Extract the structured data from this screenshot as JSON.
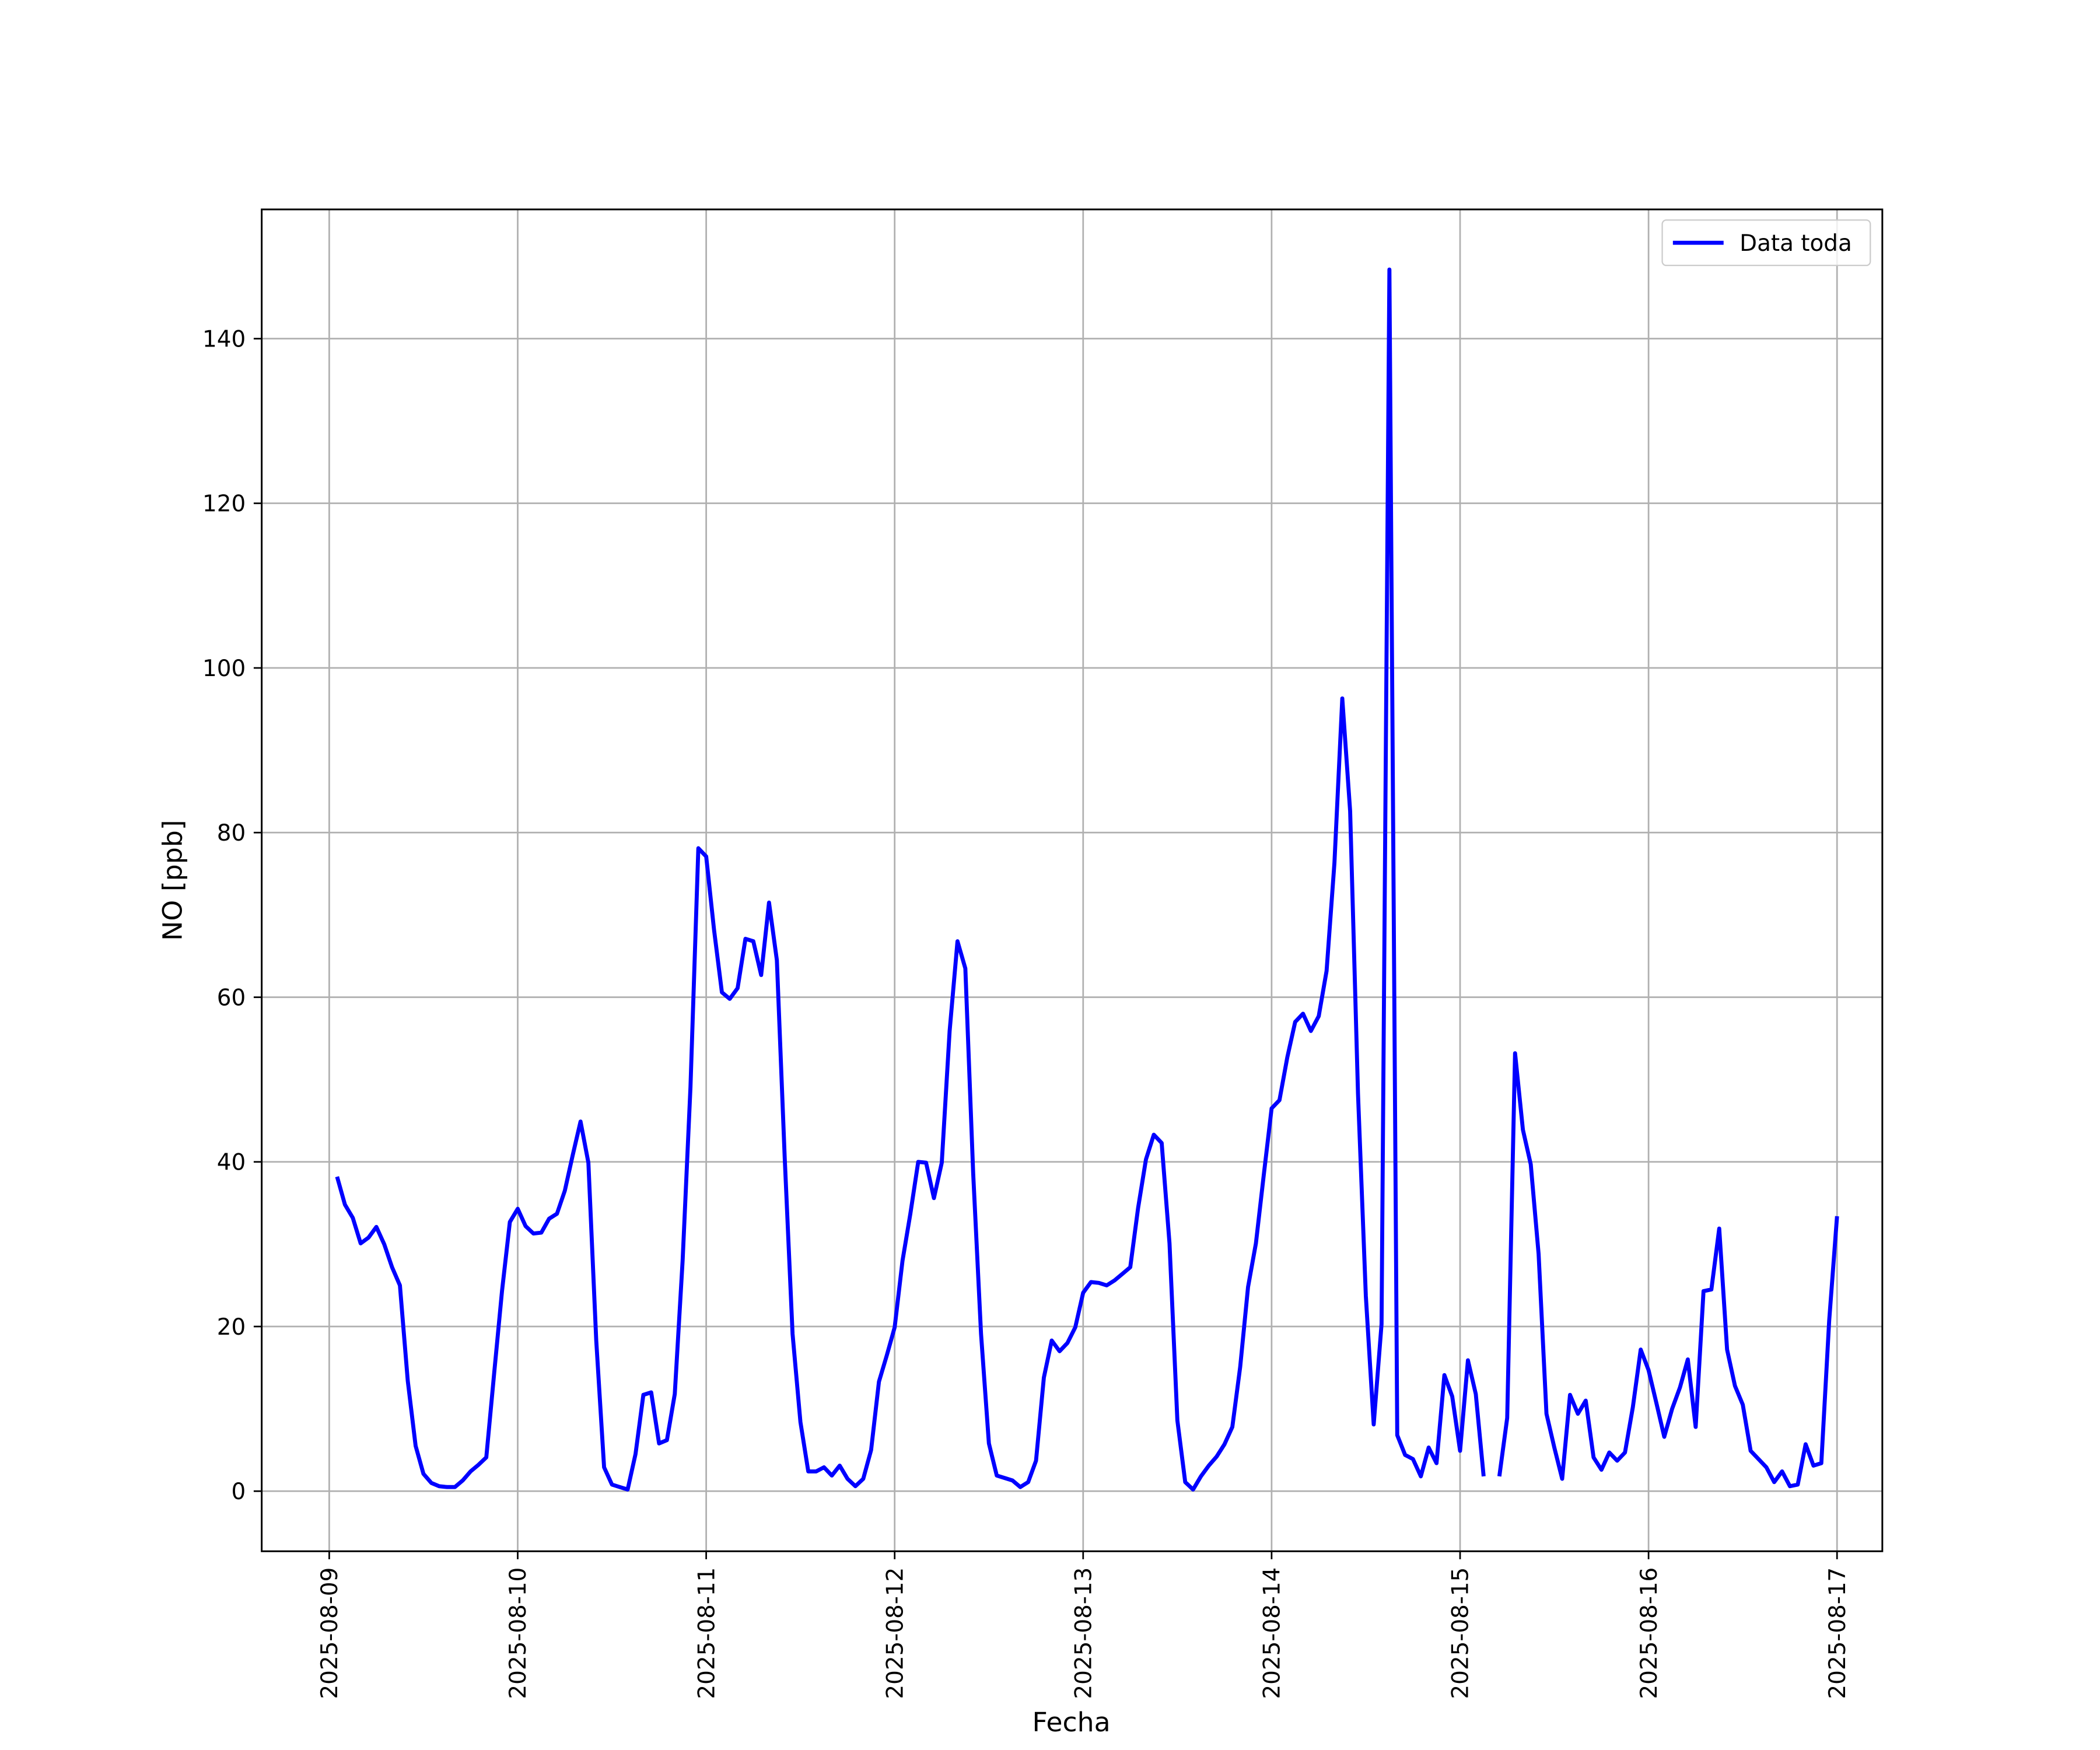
{
  "chart_data": {
    "type": "line",
    "x_label": "Fecha",
    "y_label": "NO [ppb]",
    "x": [
      "2025-08-09T01:00",
      "2025-08-09T02:00",
      "2025-08-09T03:00",
      "2025-08-09T04:00",
      "2025-08-09T05:00",
      "2025-08-09T06:00",
      "2025-08-09T07:00",
      "2025-08-09T08:00",
      "2025-08-09T09:00",
      "2025-08-09T10:00",
      "2025-08-09T11:00",
      "2025-08-09T12:00",
      "2025-08-09T13:00",
      "2025-08-09T14:00",
      "2025-08-09T15:00",
      "2025-08-09T16:00",
      "2025-08-09T17:00",
      "2025-08-09T18:00",
      "2025-08-09T19:00",
      "2025-08-09T20:00",
      "2025-08-09T21:00",
      "2025-08-09T22:00",
      "2025-08-09T23:00",
      "2025-08-10T00:00",
      "2025-08-10T01:00",
      "2025-08-10T02:00",
      "2025-08-10T03:00",
      "2025-08-10T04:00",
      "2025-08-10T05:00",
      "2025-08-10T06:00",
      "2025-08-10T07:00",
      "2025-08-10T08:00",
      "2025-08-10T09:00",
      "2025-08-10T10:00",
      "2025-08-10T11:00",
      "2025-08-10T12:00",
      "2025-08-10T13:00",
      "2025-08-10T14:00",
      "2025-08-10T15:00",
      "2025-08-10T16:00",
      "2025-08-10T17:00",
      "2025-08-10T18:00",
      "2025-08-10T19:00",
      "2025-08-10T20:00",
      "2025-08-10T21:00",
      "2025-08-10T22:00",
      "2025-08-10T23:00",
      "2025-08-11T00:00",
      "2025-08-11T01:00",
      "2025-08-11T02:00",
      "2025-08-11T03:00",
      "2025-08-11T04:00",
      "2025-08-11T05:00",
      "2025-08-11T06:00",
      "2025-08-11T07:00",
      "2025-08-11T08:00",
      "2025-08-11T09:00",
      "2025-08-11T10:00",
      "2025-08-11T11:00",
      "2025-08-11T12:00",
      "2025-08-11T13:00",
      "2025-08-11T14:00",
      "2025-08-11T15:00",
      "2025-08-11T16:00",
      "2025-08-11T17:00",
      "2025-08-11T18:00",
      "2025-08-11T19:00",
      "2025-08-11T20:00",
      "2025-08-11T21:00",
      "2025-08-11T22:00",
      "2025-08-11T23:00",
      "2025-08-12T00:00",
      "2025-08-12T01:00",
      "2025-08-12T02:00",
      "2025-08-12T03:00",
      "2025-08-12T04:00",
      "2025-08-12T05:00",
      "2025-08-12T06:00",
      "2025-08-12T07:00",
      "2025-08-12T08:00",
      "2025-08-12T09:00",
      "2025-08-12T10:00",
      "2025-08-12T11:00",
      "2025-08-12T12:00",
      "2025-08-12T13:00",
      "2025-08-12T14:00",
      "2025-08-12T15:00",
      "2025-08-12T16:00",
      "2025-08-12T17:00",
      "2025-08-12T18:00",
      "2025-08-12T19:00",
      "2025-08-12T20:00",
      "2025-08-12T21:00",
      "2025-08-12T22:00",
      "2025-08-12T23:00",
      "2025-08-13T00:00",
      "2025-08-13T01:00",
      "2025-08-13T02:00",
      "2025-08-13T03:00",
      "2025-08-13T04:00",
      "2025-08-13T05:00",
      "2025-08-13T06:00",
      "2025-08-13T07:00",
      "2025-08-13T08:00",
      "2025-08-13T09:00",
      "2025-08-13T10:00",
      "2025-08-13T11:00",
      "2025-08-13T12:00",
      "2025-08-13T13:00",
      "2025-08-13T14:00",
      "2025-08-13T15:00",
      "2025-08-13T16:00",
      "2025-08-13T17:00",
      "2025-08-13T18:00",
      "2025-08-13T19:00",
      "2025-08-13T20:00",
      "2025-08-13T21:00",
      "2025-08-13T22:00",
      "2025-08-13T23:00",
      "2025-08-14T00:00",
      "2025-08-14T01:00",
      "2025-08-14T02:00",
      "2025-08-14T03:00",
      "2025-08-14T04:00",
      "2025-08-14T05:00",
      "2025-08-14T06:00",
      "2025-08-14T07:00",
      "2025-08-14T08:00",
      "2025-08-14T09:00",
      "2025-08-14T10:00",
      "2025-08-14T11:00",
      "2025-08-14T12:00",
      "2025-08-14T13:00",
      "2025-08-14T14:00",
      "2025-08-14T15:00",
      "2025-08-14T16:00",
      "2025-08-14T17:00",
      "2025-08-14T18:00",
      "2025-08-14T19:00",
      "2025-08-14T20:00",
      "2025-08-14T21:00",
      "2025-08-14T22:00",
      "2025-08-14T23:00",
      "2025-08-15T00:00",
      "2025-08-15T01:00",
      "2025-08-15T02:00",
      "2025-08-15T03:00",
      "2025-08-15T04:00",
      "2025-08-15T05:00",
      "2025-08-15T06:00",
      "2025-08-15T07:00",
      "2025-08-15T08:00",
      "2025-08-15T09:00",
      "2025-08-15T10:00",
      "2025-08-15T11:00",
      "2025-08-15T12:00",
      "2025-08-15T13:00",
      "2025-08-15T14:00",
      "2025-08-15T15:00",
      "2025-08-15T16:00",
      "2025-08-15T17:00",
      "2025-08-15T18:00",
      "2025-08-15T19:00",
      "2025-08-15T20:00",
      "2025-08-15T21:00",
      "2025-08-15T22:00",
      "2025-08-15T23:00",
      "2025-08-16T00:00",
      "2025-08-16T01:00",
      "2025-08-16T02:00",
      "2025-08-16T03:00",
      "2025-08-16T04:00",
      "2025-08-16T05:00",
      "2025-08-16T06:00",
      "2025-08-16T07:00",
      "2025-08-16T08:00",
      "2025-08-16T09:00",
      "2025-08-16T10:00",
      "2025-08-16T11:00",
      "2025-08-16T12:00",
      "2025-08-16T13:00",
      "2025-08-16T14:00",
      "2025-08-16T15:00",
      "2025-08-16T16:00",
      "2025-08-16T17:00",
      "2025-08-16T18:00",
      "2025-08-16T19:00",
      "2025-08-16T20:00",
      "2025-08-16T21:00",
      "2025-08-16T22:00",
      "2025-08-16T23:00",
      "2025-08-17T00:00"
    ],
    "series": [
      {
        "name": "Data toda",
        "color": "#0000ff",
        "values": [
          38.2,
          34.8,
          33.2,
          30.1,
          30.8,
          32.1,
          30.0,
          27.2,
          25.0,
          13.4,
          5.5,
          2.1,
          1.0,
          0.6,
          0.5,
          0.5,
          1.3,
          2.4,
          3.2,
          4.1,
          14.3,
          24.3,
          32.7,
          34.3,
          32.2,
          31.3,
          31.4,
          33.1,
          33.7,
          36.5,
          40.8,
          44.9,
          39.9,
          18.3,
          2.9,
          0.8,
          0.5,
          0.2,
          4.5,
          11.7,
          12.0,
          5.8,
          6.2,
          11.8,
          28.0,
          49.1,
          78.1,
          77.1,
          68.2,
          60.6,
          59.8,
          61.1,
          67.1,
          66.8,
          62.7,
          71.5,
          64.5,
          40.5,
          19.1,
          8.4,
          2.4,
          2.4,
          2.9,
          1.9,
          3.1,
          1.5,
          0.6,
          1.5,
          5.0,
          13.3,
          16.5,
          19.9,
          28.0,
          33.7,
          40.0,
          39.9,
          35.6,
          39.9,
          55.9,
          66.8,
          63.5,
          38.6,
          19.1,
          5.8,
          1.9,
          1.6,
          1.3,
          0.5,
          1.1,
          3.7,
          13.8,
          18.3,
          17.0,
          18.0,
          19.9,
          24.1,
          25.4,
          25.3,
          25.0,
          25.6,
          26.4,
          27.2,
          34.4,
          40.3,
          43.3,
          42.3,
          30.1,
          8.6,
          1.1,
          0.2,
          1.8,
          3.1,
          4.2,
          5.7,
          7.8,
          15.1,
          24.8,
          30.1,
          38.4,
          46.5,
          47.5,
          52.7,
          57.0,
          58.0,
          55.9,
          57.7,
          63.2,
          76.3,
          96.3,
          82.6,
          48.3,
          23.7,
          8.1,
          20.3,
          148.4,
          6.8,
          4.4,
          3.9,
          1.8,
          5.3,
          3.4,
          14.1,
          11.5,
          4.9,
          15.9,
          11.8,
          1.8,
          null,
          1.8,
          8.9,
          53.2,
          43.9,
          39.7,
          28.8,
          9.4,
          5.3,
          1.5,
          11.7,
          9.4,
          11.0,
          4.1,
          2.6,
          4.7,
          3.7,
          4.7,
          10.2,
          17.2,
          14.7,
          10.7,
          6.6,
          10.0,
          12.6,
          16.0,
          7.8,
          24.3,
          24.5,
          31.9,
          17.2,
          12.8,
          10.5,
          4.9,
          3.9,
          2.9,
          1.1,
          2.4,
          0.6,
          0.8,
          5.7,
          3.1,
          3.4,
          20.7,
          33.4
        ]
      }
    ],
    "xlim": [
      "2025-08-08T15:24",
      "2025-08-17T05:46"
    ],
    "xticks": [
      "2025-08-09",
      "2025-08-10",
      "2025-08-11",
      "2025-08-12",
      "2025-08-13",
      "2025-08-14",
      "2025-08-15",
      "2025-08-16",
      "2025-08-17"
    ],
    "ylim": [
      -7.3,
      155.7
    ],
    "yticks": [
      0,
      20,
      40,
      60,
      80,
      100,
      120,
      140
    ],
    "grid": true,
    "legend": "upper right"
  }
}
